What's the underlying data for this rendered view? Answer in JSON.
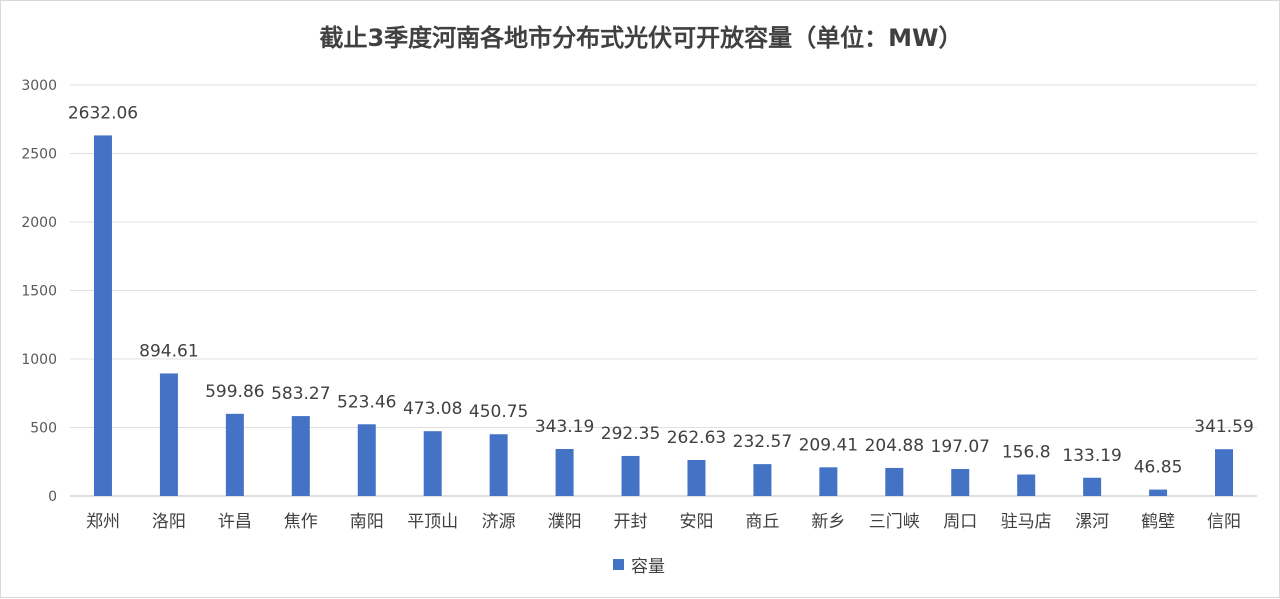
{
  "chart_data": {
    "type": "bar",
    "title": "截止3季度河南各地市分布式光伏可开放容量（单位：MW）",
    "categories": [
      "郑州",
      "洛阳",
      "许昌",
      "焦作",
      "南阳",
      "平顶山",
      "济源",
      "濮阳",
      "开封",
      "安阳",
      "商丘",
      "新乡",
      "三门峡",
      "周口",
      "驻马店",
      "漯河",
      "鹤壁",
      "信阳"
    ],
    "series": [
      {
        "name": "容量",
        "color": "#4472C4",
        "values": [
          2632.06,
          894.61,
          599.86,
          583.27,
          523.46,
          473.08,
          450.75,
          343.19,
          292.35,
          262.63,
          232.57,
          209.41,
          204.88,
          197.07,
          156.8,
          133.19,
          46.85,
          341.59
        ],
        "value_labels": [
          "2632.06",
          "894.61",
          "599.86",
          "583.27",
          "523.46",
          "473.08",
          "450.75",
          "343.19",
          "292.35",
          "262.63",
          "232.57",
          "209.41",
          "204.88",
          "197.07",
          "156.8",
          "133.19",
          "46.85",
          "341.59"
        ]
      }
    ],
    "ylim": [
      0,
      3000
    ],
    "yticks": [
      "0",
      "500",
      "1000",
      "1500",
      "2000",
      "2500",
      "3000"
    ],
    "grid": true,
    "legend_position": "bottom"
  }
}
